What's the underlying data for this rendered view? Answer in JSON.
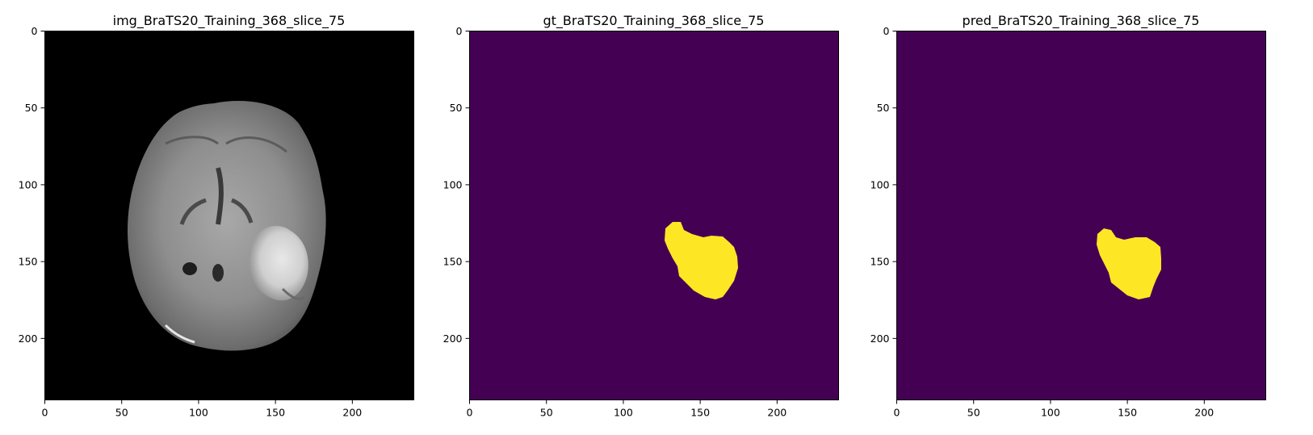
{
  "figure": {
    "panels": [
      {
        "id": "img",
        "title": "img_BraTS20_Training_368_slice_75",
        "kind": "mri-slice",
        "colormap": "gray"
      },
      {
        "id": "gt",
        "title": "gt_BraTS20_Training_368_slice_75",
        "kind": "segmentation-mask",
        "colormap": "viridis",
        "background_color": "#440154",
        "mask_color": "#fde725"
      },
      {
        "id": "pred",
        "title": "pred_BraTS20_Training_368_slice_75",
        "kind": "segmentation-mask",
        "colormap": "viridis",
        "background_color": "#440154",
        "mask_color": "#fde725"
      }
    ],
    "axes": {
      "x_range": [
        0,
        240
      ],
      "y_range": [
        240,
        0
      ],
      "x_ticks": [
        "0",
        "50",
        "100",
        "150",
        "200"
      ],
      "y_ticks": [
        "0",
        "50",
        "100",
        "150",
        "200"
      ]
    }
  }
}
